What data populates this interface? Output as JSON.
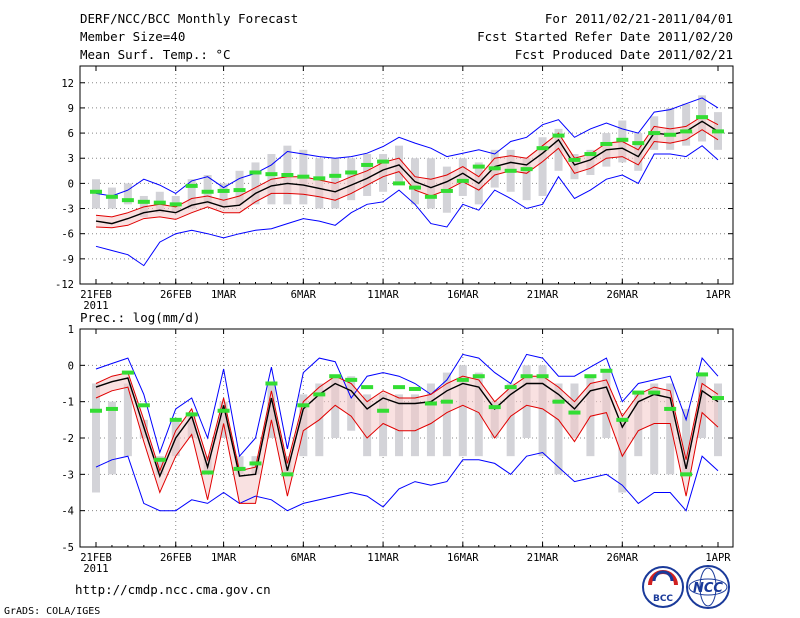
{
  "header": {
    "title": "DERF/NCC/BCC Monthly Forecast",
    "member_size": "Member Size=40",
    "period": "For 2011/02/21-2011/04/01",
    "started": "Fcst Started Refer Date 2011/02/20",
    "produced": "Fcst Produced Date 2011/02/21"
  },
  "footer": {
    "url": "http://cmdp.ncc.cma.gov.cn",
    "credit": "GrADS: COLA/IGES",
    "logo1_text": "BCC",
    "logo2_text": "NCC"
  },
  "colors": {
    "ensemble_min_max": "#0000ff",
    "spread": "#e00000",
    "ensemble_mean": "#000000",
    "member_bars": "#d3d3d8",
    "climatology": "#33dd33",
    "grid": "#888888"
  },
  "chart_data": [
    {
      "type": "line",
      "title": "Mean Surf. Temp.: °C",
      "x_tick_labels": [
        "21FEB",
        "26FEB",
        "1MAR",
        "6MAR",
        "11MAR",
        "16MAR",
        "21MAR",
        "26MAR",
        "1APR"
      ],
      "x_tick_days": [
        0,
        5,
        8,
        13,
        18,
        23,
        28,
        33,
        39
      ],
      "year_label": "2011",
      "ylim": [
        -12,
        14
      ],
      "y_ticks": [
        -12,
        -9,
        -6,
        -3,
        0,
        3,
        6,
        9,
        12
      ],
      "days": 40,
      "series": [
        {
          "name": "max",
          "values": [
            -1.2,
            -1.5,
            -0.8,
            0.5,
            -0.2,
            -1.2,
            0.3,
            0.8,
            -0.5,
            0.6,
            1.2,
            2.2,
            3.8,
            3.5,
            3.2,
            3.0,
            3.2,
            3.6,
            4.4,
            5.5,
            4.8,
            4.2,
            3.2,
            3.6,
            4.0,
            3.5,
            5.0,
            5.5,
            7.0,
            7.6,
            5.5,
            6.5,
            7.2,
            6.5,
            6.0,
            8.5,
            8.8,
            9.5,
            10.2,
            9.0
          ]
        },
        {
          "name": "upper",
          "values": [
            -3.8,
            -4.0,
            -3.5,
            -2.8,
            -2.5,
            -2.8,
            -1.8,
            -1.5,
            -2.0,
            -1.5,
            -0.5,
            0.5,
            0.8,
            0.8,
            0.4,
            0.0,
            0.8,
            1.5,
            2.5,
            3.0,
            0.8,
            0.5,
            1.0,
            2.0,
            0.8,
            3.0,
            3.3,
            3.0,
            4.5,
            6.0,
            3.0,
            3.5,
            4.8,
            5.0,
            4.0,
            6.8,
            6.5,
            6.8,
            8.0,
            7.0
          ]
        },
        {
          "name": "mean",
          "values": [
            -4.5,
            -4.8,
            -4.2,
            -3.5,
            -3.2,
            -3.5,
            -2.6,
            -2.2,
            -2.8,
            -2.6,
            -1.2,
            -0.3,
            0.0,
            -0.2,
            -0.6,
            -1.0,
            -0.2,
            0.6,
            1.6,
            2.2,
            0.2,
            -0.5,
            0.2,
            1.2,
            0.0,
            2.0,
            2.5,
            2.2,
            3.6,
            5.2,
            2.2,
            2.8,
            4.0,
            4.2,
            3.2,
            6.0,
            5.8,
            6.2,
            7.4,
            6.2
          ]
        },
        {
          "name": "lower",
          "values": [
            -5.2,
            -5.3,
            -5.0,
            -4.2,
            -4.0,
            -4.3,
            -3.5,
            -2.8,
            -3.5,
            -3.5,
            -2.2,
            -1.2,
            -1.2,
            -1.3,
            -1.6,
            -2.0,
            -1.2,
            -0.2,
            0.8,
            1.4,
            -0.8,
            -1.5,
            -0.8,
            0.2,
            -0.8,
            1.0,
            1.5,
            1.2,
            2.6,
            4.2,
            1.2,
            1.8,
            3.0,
            3.2,
            2.2,
            5.0,
            4.8,
            5.2,
            6.4,
            5.2
          ]
        },
        {
          "name": "min",
          "values": [
            -7.5,
            -8.0,
            -8.5,
            -9.8,
            -7.0,
            -6.0,
            -5.6,
            -6.0,
            -6.5,
            -6.0,
            -5.6,
            -5.4,
            -4.8,
            -4.2,
            -4.5,
            -5.0,
            -3.5,
            -2.5,
            -2.2,
            -0.8,
            -2.5,
            -4.8,
            -5.2,
            -2.5,
            -3.2,
            -0.8,
            -1.8,
            -3.0,
            -2.5,
            0.8,
            -1.8,
            -0.8,
            0.5,
            1.0,
            0.0,
            3.5,
            3.5,
            3.2,
            4.5,
            2.8
          ]
        },
        {
          "name": "bar_low",
          "values": [
            -3.0,
            -3.0,
            -2.5,
            -4.0,
            -3.5,
            -3.5,
            -3.0,
            -2.5,
            -2.8,
            -2.5,
            -2.5,
            -2.5,
            -2.5,
            -2.5,
            -3.0,
            -3.0,
            -2.0,
            -1.5,
            -1.0,
            0.0,
            -2.5,
            -3.0,
            -3.5,
            -1.5,
            -2.5,
            -0.5,
            -1.0,
            -2.0,
            -1.5,
            1.5,
            0.5,
            1.0,
            2.0,
            2.5,
            1.5,
            4.0,
            4.0,
            4.5,
            5.0,
            4.0
          ]
        },
        {
          "name": "bar_high",
          "values": [
            0.5,
            -0.5,
            0.0,
            -1.5,
            -1.0,
            -1.5,
            0.5,
            1.0,
            0.0,
            1.5,
            2.5,
            3.5,
            4.5,
            4.0,
            3.0,
            3.0,
            3.0,
            3.5,
            3.5,
            4.5,
            3.0,
            3.0,
            2.0,
            3.0,
            2.5,
            4.0,
            4.0,
            3.0,
            5.5,
            6.5,
            3.5,
            4.0,
            6.0,
            7.5,
            6.0,
            8.0,
            9.0,
            9.5,
            10.5,
            8.5
          ]
        },
        {
          "name": "climatology",
          "values": [
            -1.0,
            -1.6,
            -2.0,
            -2.2,
            -2.3,
            -2.5,
            -0.3,
            -1.0,
            -0.9,
            -0.8,
            1.3,
            1.1,
            1.0,
            0.8,
            0.6,
            0.9,
            1.3,
            2.2,
            2.6,
            0.0,
            -0.5,
            -1.6,
            -0.9,
            0.3,
            2.0,
            1.8,
            1.5,
            1.7,
            4.2,
            5.7,
            2.8,
            3.5,
            4.7,
            5.2,
            4.8,
            6.0,
            5.8,
            6.2,
            7.9,
            6.2
          ]
        }
      ]
    },
    {
      "type": "line",
      "title": "Prec.: log(mm/d)",
      "x_tick_labels": [
        "21FEB",
        "26FEB",
        "1MAR",
        "6MAR",
        "11MAR",
        "16MAR",
        "21MAR",
        "26MAR",
        "1APR"
      ],
      "x_tick_days": [
        0,
        5,
        8,
        13,
        18,
        23,
        28,
        33,
        39
      ],
      "year_label": "2011",
      "ylim": [
        -5,
        1
      ],
      "y_ticks": [
        -5,
        -4,
        -3,
        -2,
        -1,
        0,
        1
      ],
      "days": 40,
      "series": [
        {
          "name": "max",
          "values": [
            -0.1,
            0.05,
            0.2,
            -0.8,
            -2.4,
            -1.2,
            -0.9,
            -2.0,
            -0.1,
            -2.5,
            -2.0,
            -0.05,
            -2.3,
            -0.2,
            0.2,
            0.1,
            -0.9,
            -0.3,
            -0.2,
            -0.3,
            -0.5,
            -0.8,
            -0.4,
            0.3,
            0.2,
            -0.2,
            -0.5,
            0.3,
            0.2,
            -0.3,
            -0.3,
            -0.05,
            0.2,
            -1.0,
            -0.5,
            -0.4,
            -0.3,
            -1.5,
            0.2,
            -0.3
          ]
        },
        {
          "name": "upper",
          "values": [
            -0.5,
            -0.3,
            -0.2,
            -1.5,
            -2.9,
            -1.8,
            -1.2,
            -2.6,
            -0.9,
            -2.9,
            -2.8,
            -0.7,
            -2.7,
            -1.0,
            -0.6,
            -0.3,
            -0.5,
            -1.0,
            -0.7,
            -0.9,
            -0.9,
            -0.8,
            -0.5,
            -0.3,
            -0.4,
            -1.0,
            -0.6,
            -0.3,
            -0.3,
            -0.6,
            -1.0,
            -0.5,
            -0.4,
            -1.4,
            -0.8,
            -0.6,
            -0.7,
            -2.6,
            -0.5,
            -0.8
          ]
        },
        {
          "name": "mean",
          "values": [
            -0.6,
            -0.45,
            -0.35,
            -1.7,
            -3.05,
            -2.0,
            -1.4,
            -2.8,
            -1.1,
            -3.05,
            -3.0,
            -0.9,
            -2.9,
            -1.2,
            -0.8,
            -0.5,
            -0.7,
            -1.2,
            -0.9,
            -1.05,
            -1.05,
            -1.0,
            -0.7,
            -0.5,
            -0.6,
            -1.2,
            -0.8,
            -0.5,
            -0.5,
            -0.8,
            -1.2,
            -0.7,
            -0.6,
            -1.7,
            -1.0,
            -0.8,
            -0.9,
            -2.85,
            -0.7,
            -1.0
          ]
        },
        {
          "name": "lower",
          "values": [
            -0.9,
            -0.7,
            -0.6,
            -2.1,
            -3.5,
            -2.5,
            -1.9,
            -3.7,
            -1.6,
            -3.8,
            -3.8,
            -1.5,
            -3.6,
            -1.8,
            -1.5,
            -1.1,
            -1.4,
            -2.0,
            -1.6,
            -1.8,
            -1.8,
            -1.6,
            -1.3,
            -1.1,
            -1.3,
            -2.0,
            -1.4,
            -1.1,
            -1.2,
            -1.5,
            -2.1,
            -1.4,
            -1.3,
            -2.5,
            -1.8,
            -1.6,
            -1.6,
            -3.6,
            -1.3,
            -1.7
          ]
        },
        {
          "name": "min",
          "values": [
            -2.8,
            -2.6,
            -2.5,
            -3.8,
            -4.0,
            -4.0,
            -3.7,
            -3.8,
            -3.5,
            -3.8,
            -3.6,
            -3.7,
            -4.0,
            -3.8,
            -3.7,
            -3.6,
            -3.5,
            -3.6,
            -3.9,
            -3.4,
            -3.2,
            -3.3,
            -3.2,
            -2.6,
            -2.6,
            -2.7,
            -3.0,
            -2.5,
            -2.4,
            -2.8,
            -3.2,
            -3.1,
            -3.0,
            -3.3,
            -3.8,
            -3.5,
            -3.5,
            -4.0,
            -2.5,
            -2.9
          ]
        },
        {
          "name": "bar_low",
          "values": [
            -3.5,
            -3.0,
            -2.5,
            -2.0,
            -3.0,
            -2.5,
            -2.0,
            -3.0,
            -2.0,
            -3.0,
            -3.0,
            -2.0,
            -3.0,
            -2.5,
            -2.5,
            -2.0,
            -1.8,
            -2.5,
            -2.5,
            -2.5,
            -2.5,
            -2.5,
            -2.5,
            -2.5,
            -2.5,
            -2.0,
            -2.5,
            -2.0,
            -2.5,
            -3.0,
            -2.0,
            -2.5,
            -2.0,
            -3.5,
            -2.5,
            -3.0,
            -3.0,
            -3.0,
            -2.0,
            -2.5
          ]
        },
        {
          "name": "bar_high",
          "values": [
            -0.5,
            -1.0,
            -0.5,
            -1.5,
            -2.5,
            -1.5,
            -1.3,
            -2.5,
            -1.0,
            -2.5,
            -2.5,
            -0.5,
            -2.5,
            -0.8,
            -0.5,
            -0.3,
            -0.3,
            -0.8,
            -0.8,
            -0.8,
            -0.8,
            -0.5,
            -0.2,
            0.0,
            -0.2,
            -1.0,
            -0.5,
            0.0,
            0.0,
            -0.5,
            -0.5,
            -0.3,
            -0.2,
            -1.5,
            -0.8,
            -0.5,
            -0.5,
            -1.2,
            -0.3,
            -0.5
          ]
        },
        {
          "name": "climatology",
          "values": [
            -1.25,
            -1.2,
            -0.2,
            -1.1,
            -2.6,
            -1.5,
            -1.35,
            -2.95,
            -1.25,
            -2.85,
            -2.7,
            -0.5,
            -3.0,
            -1.1,
            -0.8,
            -0.3,
            -0.4,
            -0.6,
            -1.25,
            -0.6,
            -0.65,
            -1.05,
            -1.0,
            -0.4,
            -0.3,
            -1.15,
            -0.6,
            -0.3,
            -0.3,
            -1.0,
            -1.3,
            -0.3,
            -0.15,
            -1.5,
            -0.75,
            -0.75,
            -1.2,
            -3.0,
            -0.25,
            -0.9
          ]
        }
      ]
    }
  ]
}
